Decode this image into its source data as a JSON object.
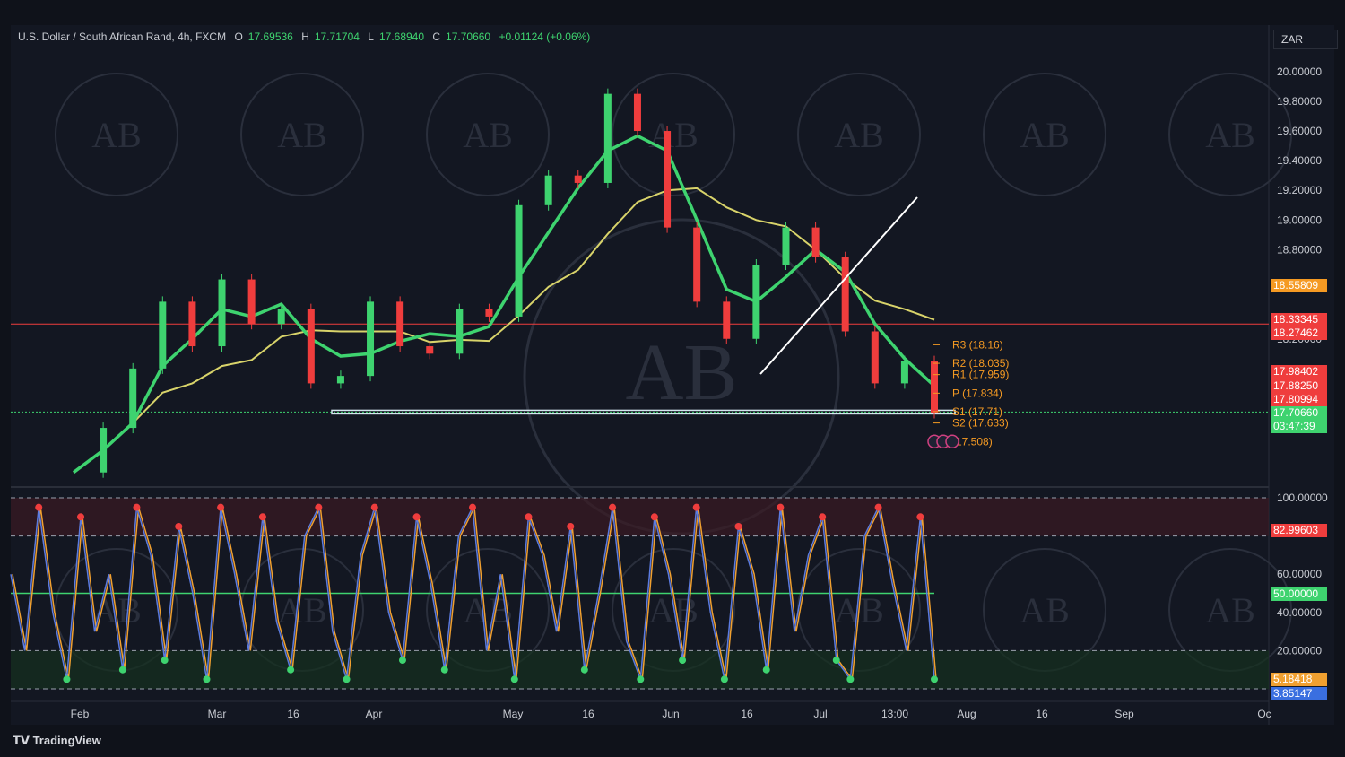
{
  "header": {
    "symbol": "U.S. Dollar / South African Rand, 4h, FXCM",
    "open_label": "O",
    "open": "17.69536",
    "high_label": "H",
    "high": "17.71704",
    "low_label": "L",
    "low": "17.68940",
    "close_label": "C",
    "close": "17.70660",
    "change": "+0.01124 (+0.06%)"
  },
  "currency_button": "ZAR",
  "branding": {
    "logo_text": "TradingView",
    "watermark_text": "AB"
  },
  "colors": {
    "up": "#3ed36f",
    "down": "#ef3d3d",
    "ma_yellow": "#d8d36a",
    "background": "#131722",
    "blue_line": "#5b7be0",
    "orange_line": "#f0a030"
  },
  "chart_data": [
    {
      "type": "line",
      "title": "U.S. Dollar / South African Rand, 4h, FXCM",
      "x_ticks": [
        "Feb",
        "Mar",
        "16",
        "Apr",
        "May",
        "16",
        "Jun",
        "16",
        "Jul",
        "13:00",
        "Aug",
        "16",
        "Sep",
        "Oc"
      ],
      "y_ticks": [
        "20.00000",
        "19.80000",
        "19.60000",
        "19.40000",
        "19.20000",
        "19.00000",
        "18.80000",
        "18.20000"
      ],
      "ylim": [
        17.25,
        20.15
      ],
      "x": [
        "Jan 25",
        "Feb 5",
        "Feb 15",
        "Feb 26",
        "Mar 3",
        "Mar 9",
        "Mar 16",
        "Mar 24",
        "Mar 30",
        "Apr 4",
        "Apr 10",
        "Apr 18",
        "Apr 24",
        "May 1",
        "May 8",
        "May 12",
        "May 18",
        "May 24",
        "May 30",
        "Jun 5",
        "Jun 12",
        "Jun 18",
        "Jun 23",
        "Jun 29",
        "Jul 5",
        "Jul 8",
        "Jul 12",
        "Jul 16",
        "Jul 20",
        "Jul 24"
      ],
      "series": [
        {
          "values": [
            17.3,
            17.6,
            18.0,
            18.45,
            18.15,
            18.6,
            18.3,
            18.4,
            17.9,
            17.95,
            18.45,
            18.15,
            18.1,
            18.4,
            18.35,
            19.1,
            19.3,
            19.25,
            19.85,
            19.6,
            18.95,
            18.45,
            18.2,
            18.7,
            18.95,
            18.75,
            18.25,
            17.9,
            18.05,
            17.7
          ]
        }
      ],
      "current_price": "17.70660",
      "countdown": "03:47:39",
      "price_tags": [
        {
          "value": "18.55809",
          "color": "#f59a23"
        },
        {
          "value": "18.33345",
          "color": "#ef3d3d"
        },
        {
          "value": "18.27462",
          "color": "#ef3d3d"
        },
        {
          "value": "17.98402",
          "color": "#ef3d3d"
        },
        {
          "value": "17.88250",
          "color": "#ef3d3d"
        },
        {
          "value": "17.80994",
          "color": "#ef3d3d"
        },
        {
          "value": "17.70660",
          "color": "#3ed36f"
        },
        {
          "value": "03:47:39",
          "color": "#3ed36f"
        }
      ],
      "pivot_levels": [
        {
          "label": "R3 (18.16)",
          "value": 18.16
        },
        {
          "label": "R2 (18.035)",
          "value": 18.035
        },
        {
          "label": "R1 (17.959)",
          "value": 17.959
        },
        {
          "label": "P (17.834)",
          "value": 17.834
        },
        {
          "label": "S1 (17.71)",
          "value": 17.71
        },
        {
          "label": "S2 (17.633)",
          "value": 17.633
        },
        {
          "label": "(17.508)",
          "value": 17.508
        }
      ]
    },
    {
      "type": "line",
      "title": "",
      "y_ticks": [
        "100.00000",
        "60.00000",
        "40.00000",
        "20.00000"
      ],
      "ylim": [
        0,
        100
      ],
      "overbought": 80,
      "oversold": 20,
      "midline": 50,
      "price_tags": [
        {
          "value": "82.99603",
          "color": "#ef3d3d"
        },
        {
          "value": "50.00000",
          "color": "#3ed36f"
        },
        {
          "value": "5.18418",
          "color": "#f0a030"
        },
        {
          "value": "3.85147",
          "color": "#3a6fe0"
        }
      ],
      "series": [
        {
          "values": [
            60,
            20,
            95,
            40,
            5,
            90,
            30,
            60,
            10,
            95,
            70,
            15,
            85,
            50,
            5,
            95,
            60,
            20,
            90,
            35,
            10,
            80,
            95,
            30,
            5,
            70,
            95,
            40,
            15,
            90,
            55,
            10,
            80,
            95,
            20,
            60,
            5,
            90,
            70,
            30,
            85,
            10,
            50,
            95,
            25,
            5,
            90,
            60,
            15,
            95,
            40,
            5,
            85,
            60,
            10,
            95,
            30,
            70,
            90,
            15,
            5,
            80,
            95,
            55,
            20,
            90,
            5
          ]
        }
      ]
    }
  ]
}
